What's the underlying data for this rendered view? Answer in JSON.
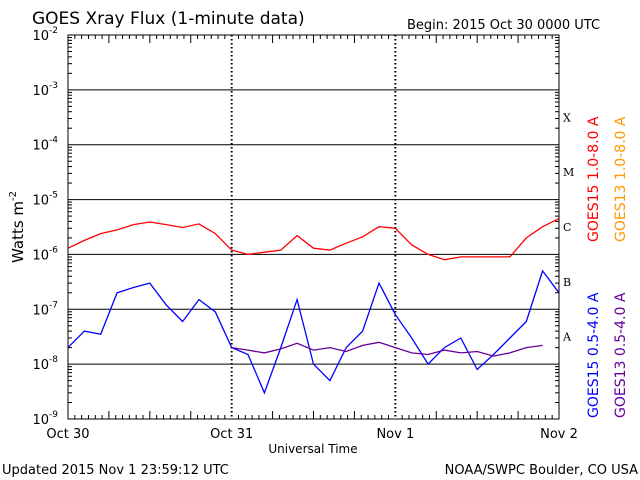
{
  "chart_data": {
    "type": "line",
    "title": "GOES Xray Flux (1-minute data)",
    "begin_text": "Begin:  2015 Oct 30 0000 UTC",
    "xlabel": "Universal Time",
    "ylabel": "Watts m",
    "ylabel_sup": "-2",
    "x_ticks": [
      "Oct 30",
      "Oct 31",
      "Nov 1",
      "Nov 2"
    ],
    "xlim_days": [
      0,
      3
    ],
    "y_scale": "log",
    "ylim": [
      1e-09,
      0.01
    ],
    "y_tick_exponents": [
      "-9",
      "-8",
      "-7",
      "-6",
      "-5",
      "-4",
      "-3",
      "-2"
    ],
    "flare_classes": [
      {
        "label": "X",
        "level": 0.0001
      },
      {
        "label": "M",
        "level": 1e-05
      },
      {
        "label": "C",
        "level": 1e-06
      },
      {
        "label": "B",
        "level": 1e-07
      },
      {
        "label": "A",
        "level": 1e-08
      }
    ],
    "grid": "horizontal lines at each decade; dotted vertical lines at day boundaries",
    "series": [
      {
        "name": "GOES15 1.0-8.0 A",
        "color": "#ff0000",
        "points": [
          [
            0.0,
            1.3e-06
          ],
          [
            0.1,
            1.8e-06
          ],
          [
            0.2,
            2.4e-06
          ],
          [
            0.3,
            2.8e-06
          ],
          [
            0.4,
            3.5e-06
          ],
          [
            0.5,
            3.9e-06
          ],
          [
            0.6,
            3.5e-06
          ],
          [
            0.7,
            3.1e-06
          ],
          [
            0.8,
            3.6e-06
          ],
          [
            0.9,
            2.4e-06
          ],
          [
            1.0,
            1.2e-06
          ],
          [
            1.1,
            1e-06
          ],
          [
            1.2,
            1.1e-06
          ],
          [
            1.3,
            1.2e-06
          ],
          [
            1.4,
            2.2e-06
          ],
          [
            1.5,
            1.3e-06
          ],
          [
            1.6,
            1.2e-06
          ],
          [
            1.7,
            1.6e-06
          ],
          [
            1.8,
            2.1e-06
          ],
          [
            1.9,
            3.2e-06
          ],
          [
            2.0,
            3e-06
          ],
          [
            2.1,
            1.5e-06
          ],
          [
            2.2,
            1e-06
          ],
          [
            2.3,
            8e-07
          ],
          [
            2.4,
            9e-07
          ],
          [
            2.5,
            9e-07
          ],
          [
            2.6,
            9e-07
          ],
          [
            2.7,
            9e-07
          ],
          [
            2.8,
            2e-06
          ],
          [
            2.9,
            3.2e-06
          ],
          [
            3.0,
            4.5e-06
          ]
        ]
      },
      {
        "name": "GOES13 1.0-8.0 A",
        "color": "#ff9900",
        "points": []
      },
      {
        "name": "GOES15 0.5-4.0 A",
        "color": "#0000ff",
        "points": [
          [
            0.0,
            2e-08
          ],
          [
            0.1,
            4e-08
          ],
          [
            0.2,
            3.5e-08
          ],
          [
            0.3,
            2e-07
          ],
          [
            0.4,
            2.5e-07
          ],
          [
            0.5,
            3e-07
          ],
          [
            0.6,
            1.2e-07
          ],
          [
            0.7,
            6e-08
          ],
          [
            0.8,
            1.5e-07
          ],
          [
            0.9,
            9e-08
          ],
          [
            1.0,
            2e-08
          ],
          [
            1.1,
            1.5e-08
          ],
          [
            1.2,
            3e-09
          ],
          [
            1.3,
            2e-08
          ],
          [
            1.4,
            1.5e-07
          ],
          [
            1.5,
            1e-08
          ],
          [
            1.6,
            5e-09
          ],
          [
            1.7,
            2e-08
          ],
          [
            1.8,
            4e-08
          ],
          [
            1.9,
            3e-07
          ],
          [
            2.0,
            8e-08
          ],
          [
            2.1,
            3e-08
          ],
          [
            2.2,
            1e-08
          ],
          [
            2.3,
            2e-08
          ],
          [
            2.4,
            3e-08
          ],
          [
            2.5,
            8e-09
          ],
          [
            2.6,
            1.5e-08
          ],
          [
            2.7,
            3e-08
          ],
          [
            2.8,
            6e-08
          ],
          [
            2.9,
            5e-07
          ],
          [
            3.0,
            2e-07
          ]
        ]
      },
      {
        "name": "GOES13 0.5-4.0 A",
        "color": "#660099",
        "points": [
          [
            1.0,
            2e-08
          ],
          [
            1.1,
            1.8e-08
          ],
          [
            1.2,
            1.6e-08
          ],
          [
            1.3,
            1.9e-08
          ],
          [
            1.4,
            2.4e-08
          ],
          [
            1.5,
            1.8e-08
          ],
          [
            1.6,
            2e-08
          ],
          [
            1.7,
            1.7e-08
          ],
          [
            1.8,
            2.2e-08
          ],
          [
            1.9,
            2.5e-08
          ],
          [
            2.0,
            2e-08
          ],
          [
            2.1,
            1.6e-08
          ],
          [
            2.2,
            1.5e-08
          ],
          [
            2.3,
            1.8e-08
          ],
          [
            2.4,
            1.6e-08
          ],
          [
            2.5,
            1.7e-08
          ],
          [
            2.6,
            1.4e-08
          ],
          [
            2.7,
            1.6e-08
          ],
          [
            2.8,
            2e-08
          ],
          [
            2.9,
            2.2e-08
          ]
        ]
      }
    ]
  },
  "footer": {
    "updated": "Updated 2015 Nov  1 23:59:12 UTC",
    "credit": "NOAA/SWPC Boulder, CO USA"
  }
}
